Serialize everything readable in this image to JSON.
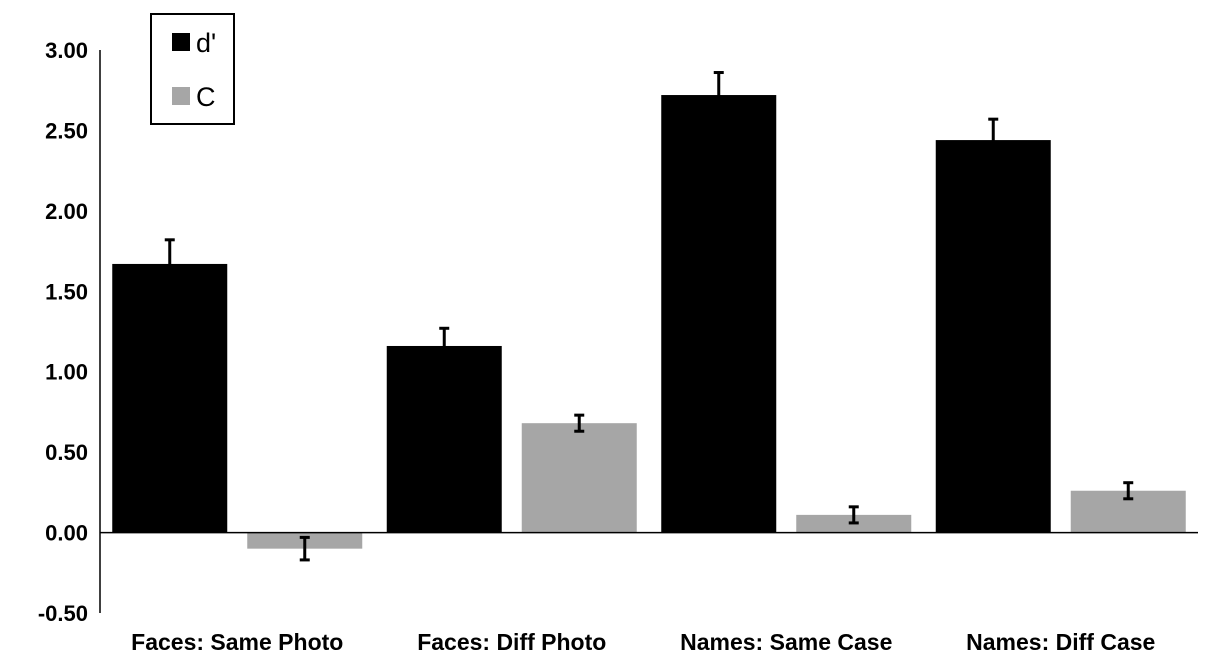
{
  "chart_data": {
    "type": "bar",
    "categories": [
      "Faces: Same Photo",
      "Faces: Diff Photo",
      "Names: Same Case",
      "Names: Diff Case"
    ],
    "series": [
      {
        "name": "d'",
        "values": [
          1.67,
          1.16,
          2.72,
          2.44
        ],
        "errors": [
          0.15,
          0.11,
          0.14,
          0.13
        ],
        "color": "#000000"
      },
      {
        "name": "C",
        "values": [
          -0.1,
          0.68,
          0.11,
          0.26
        ],
        "errors": [
          0.07,
          0.05,
          0.05,
          0.05
        ],
        "color": "#a6a6a6"
      }
    ],
    "yticks": [
      "3.00",
      "2.50",
      "2.00",
      "1.50",
      "1.00",
      "0.50",
      "0.00",
      "-0.50"
    ],
    "ylim": [
      -0.5,
      3.0
    ],
    "grid": false,
    "legend_position": "top-left"
  }
}
